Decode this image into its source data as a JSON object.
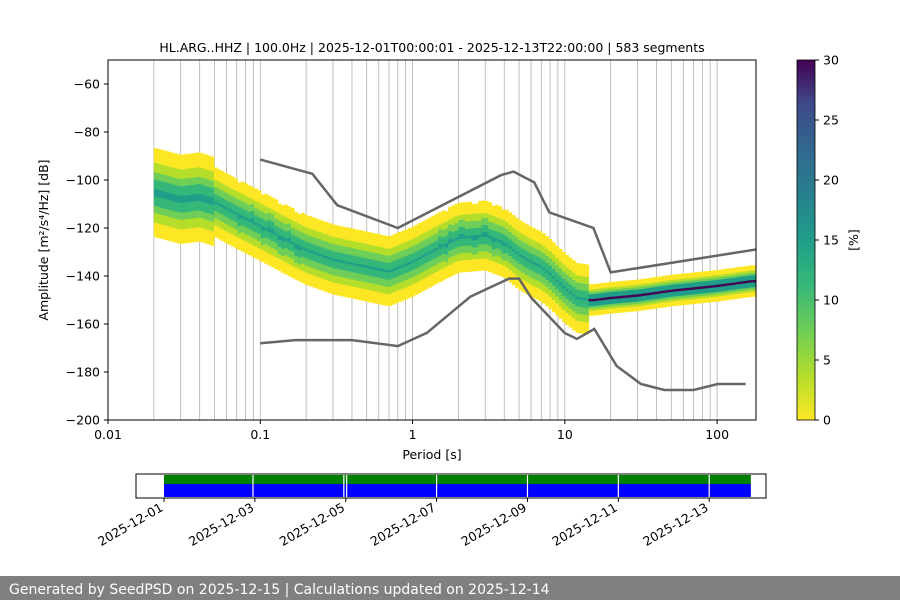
{
  "chart_data": {
    "type": "heatmap",
    "title": "HL.ARG..HHZ | 100.0Hz | 2025-12-01T00:00:01 - 2025-12-13T22:00:00 | 583 segments",
    "xlabel": "Period [s]",
    "ylabel": "Amplitude [m²/s⁴/Hz] [dB]",
    "x_scale": "log",
    "xlim": [
      0.01,
      180
    ],
    "ylim": [
      -200,
      -50
    ],
    "x_ticks": [
      "0.01",
      "0.1",
      "1",
      "10",
      "100"
    ],
    "y_ticks": [
      "−200",
      "−180",
      "−160",
      "−140",
      "−120",
      "−100",
      "−80",
      "−60"
    ],
    "grid": "vertical",
    "colorbar": {
      "label": "[%]",
      "range": [
        0,
        30
      ],
      "ticks": [
        "0",
        "5",
        "10",
        "15",
        "20",
        "25",
        "30"
      ],
      "colormap": "viridis_r"
    },
    "density_mode": {
      "period": [
        0.02,
        0.03,
        0.04,
        0.05,
        0.07,
        0.1,
        0.15,
        0.2,
        0.3,
        0.5,
        0.7,
        1,
        1.5,
        2,
        3,
        4,
        5,
        6,
        7,
        8,
        10,
        12,
        15,
        20,
        30,
        50,
        100,
        170
      ],
      "db": [
        -105,
        -108,
        -107,
        -109,
        -114,
        -119,
        -125,
        -129,
        -133,
        -136,
        -138,
        -134,
        -128,
        -124,
        -123,
        -126,
        -131,
        -134,
        -136,
        -139,
        -145,
        -149,
        -150,
        -149,
        -148,
        -146,
        -144,
        -142
      ]
    },
    "series": [
      {
        "name": "NHNM",
        "period": [
          0.1,
          0.22,
          0.32,
          0.8,
          3.8,
          4.6,
          6.3,
          7.9,
          15.4,
          20,
          354.8
        ],
        "db": [
          -91.5,
          -97.4,
          -110.5,
          -120,
          -98,
          -96.5,
          -101,
          -113.5,
          -120,
          -138.5,
          -126
        ]
      },
      {
        "name": "NLNM",
        "period": [
          0.1,
          0.17,
          0.4,
          0.8,
          1.24,
          2.4,
          4.3,
          5,
          6,
          10,
          12,
          15.6,
          21.9,
          31.6,
          45,
          70,
          101,
          154
        ],
        "db": [
          -168,
          -166.7,
          -166.7,
          -169.2,
          -163.7,
          -148.6,
          -141.1,
          -141.1,
          -149,
          -163.8,
          -166.2,
          -162.1,
          -177.5,
          -185,
          -187.5,
          -187.5,
          -185,
          -185
        ]
      }
    ]
  },
  "timeline": {
    "start": "2025-12-01",
    "end": "2025-12-14T06:00",
    "data_start": "2025-12-01",
    "data_end": "2025-12-13T22:00",
    "gaps": [
      "2025-12-02T23:00",
      "2025-12-04T23:00",
      "2025-12-05T00:30",
      "2025-12-07T00:00",
      "2025-12-09T00:00",
      "2025-12-11T00:00",
      "2025-12-13T00:00"
    ],
    "date_labels": [
      "2025-12-01",
      "2025-12-03",
      "2025-12-05",
      "2025-12-07",
      "2025-12-09",
      "2025-12-11",
      "2025-12-13"
    ],
    "colors": {
      "coverage": "#0000ff",
      "psd": "#008000"
    }
  },
  "footer": {
    "text": "Generated by SeedPSD on 2025-12-15 | Calculations updated on 2025-12-14"
  }
}
